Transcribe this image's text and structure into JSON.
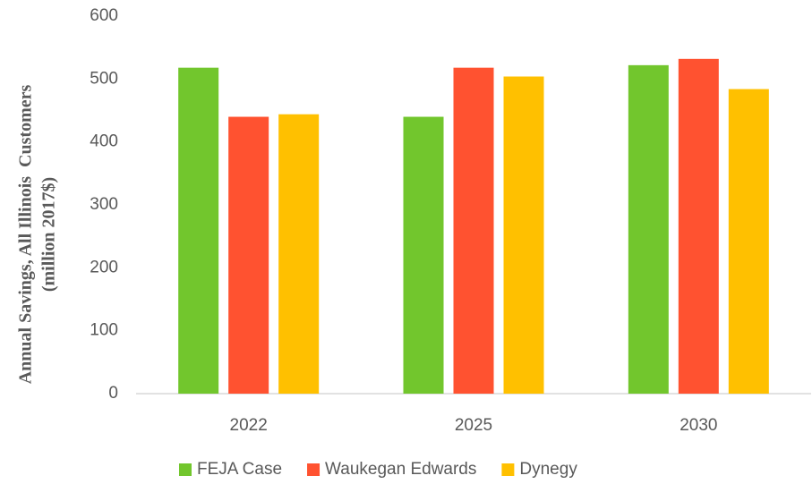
{
  "chart_data": {
    "type": "bar",
    "ylabel": [
      "Annual Savings, All Illinois  Customers",
      "(million 2017$)"
    ],
    "categories": [
      "2022",
      "2025",
      "2030"
    ],
    "series": [
      {
        "name": "FEJA Case",
        "color": "#72c62d",
        "values": [
          518,
          440,
          522
        ]
      },
      {
        "name": "Waukegan Edwards",
        "color": "#ff5230",
        "values": [
          440,
          518,
          532
        ]
      },
      {
        "name": "Dynegy",
        "color": "#ffc000",
        "values": [
          444,
          504,
          484
        ]
      }
    ],
    "ylim": [
      0,
      600
    ],
    "yticks": [
      0,
      100,
      200,
      300,
      400,
      500,
      600
    ],
    "grid": false,
    "legend": "bottom"
  }
}
